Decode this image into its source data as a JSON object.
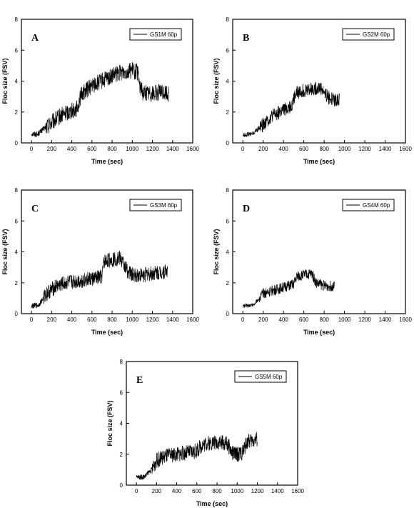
{
  "chart_data": [
    {
      "type": "line",
      "panel_label": "A",
      "legend": "GS1M 60p",
      "legend_position": "top-right",
      "xlabel": "Time (sec)",
      "ylabel": "Floc size (FSV)",
      "xlim": [
        -100,
        1600
      ],
      "ylim": [
        0,
        8
      ],
      "xticks": [
        0,
        200,
        400,
        600,
        800,
        1000,
        1200,
        1400,
        1600
      ],
      "yticks": [
        0,
        2,
        4,
        6,
        8
      ],
      "grid": false,
      "series": [
        {
          "noise": 0.55,
          "x": [
            0,
            60,
            100,
            200,
            300,
            400,
            450,
            470,
            500,
            600,
            700,
            800,
            900,
            1000,
            1050,
            1080,
            1100,
            1200,
            1300,
            1360
          ],
          "y": [
            0.6,
            0.55,
            0.8,
            1.3,
            1.8,
            2.1,
            2.2,
            2.6,
            3.2,
            3.7,
            4.0,
            4.3,
            4.6,
            4.7,
            4.6,
            3.6,
            3.3,
            3.2,
            3.3,
            3.2
          ]
        }
      ]
    },
    {
      "type": "line",
      "panel_label": "B",
      "legend": "GS2M 60p",
      "legend_position": "top-right",
      "xlabel": "Time (sec)",
      "ylabel": "Floc size (FSV)",
      "xlim": [
        -100,
        1600
      ],
      "ylim": [
        0,
        8
      ],
      "xticks": [
        0,
        200,
        400,
        600,
        800,
        1000,
        1200,
        1400,
        1600
      ],
      "yticks": [
        0,
        2,
        4,
        6,
        8
      ],
      "grid": false,
      "series": [
        {
          "noise": 0.45,
          "x": [
            0,
            100,
            200,
            300,
            400,
            480,
            520,
            600,
            700,
            760,
            800,
            850,
            900,
            950
          ],
          "y": [
            0.5,
            0.6,
            1.2,
            1.8,
            2.1,
            2.4,
            3.2,
            3.4,
            3.5,
            3.6,
            3.3,
            2.9,
            2.8,
            2.8
          ]
        }
      ]
    },
    {
      "type": "line",
      "panel_label": "C",
      "legend": "GS3M 60p",
      "legend_position": "top-right",
      "xlabel": "Time (sec)",
      "ylabel": "Floc size (FSV)",
      "xlim": [
        -100,
        1600
      ],
      "ylim": [
        0,
        8
      ],
      "xticks": [
        0,
        200,
        400,
        600,
        800,
        1000,
        1200,
        1400,
        1600
      ],
      "yticks": [
        0,
        2,
        4,
        6,
        8
      ],
      "grid": false,
      "series": [
        {
          "noise": 0.5,
          "x": [
            0,
            70,
            150,
            250,
            350,
            450,
            550,
            650,
            700,
            720,
            800,
            880,
            950,
            1000,
            1100,
            1200,
            1300,
            1350
          ],
          "y": [
            0.5,
            0.55,
            1.3,
            1.8,
            2.0,
            2.1,
            2.2,
            2.3,
            2.4,
            3.4,
            3.5,
            3.6,
            2.8,
            2.5,
            2.5,
            2.6,
            2.7,
            2.8
          ]
        }
      ]
    },
    {
      "type": "line",
      "panel_label": "D",
      "legend": "GS4M 60p",
      "legend_position": "top-right",
      "xlabel": "Time (sec)",
      "ylabel": "Floc size (FSV)",
      "xlim": [
        -100,
        1600
      ],
      "ylim": [
        0,
        8
      ],
      "xticks": [
        0,
        200,
        400,
        600,
        800,
        1000,
        1200,
        1400,
        1600
      ],
      "yticks": [
        0,
        2,
        4,
        6,
        8
      ],
      "grid": false,
      "series": [
        {
          "noise": 0.35,
          "x": [
            0,
            100,
            150,
            200,
            300,
            400,
            500,
            530,
            600,
            680,
            720,
            800,
            900
          ],
          "y": [
            0.5,
            0.55,
            0.9,
            1.3,
            1.5,
            1.7,
            1.9,
            2.4,
            2.5,
            2.6,
            2.0,
            1.8,
            1.8
          ]
        }
      ]
    },
    {
      "type": "line",
      "panel_label": "E",
      "legend": "GS5M 60p",
      "legend_position": "top-right",
      "xlabel": "Time (sec)",
      "ylabel": "Floc size (FSV)",
      "xlim": [
        -100,
        1600
      ],
      "ylim": [
        0,
        8
      ],
      "xticks": [
        0,
        200,
        400,
        600,
        800,
        1000,
        1200,
        1400,
        1600
      ],
      "yticks": [
        0,
        2,
        4,
        6,
        8
      ],
      "grid": false,
      "series": [
        {
          "noise": 0.5,
          "x": [
            0,
            80,
            150,
            200,
            300,
            400,
            500,
            600,
            650,
            700,
            800,
            900,
            950,
            1000,
            1050,
            1100,
            1200
          ],
          "y": [
            0.5,
            0.55,
            1.0,
            1.6,
            1.9,
            2.0,
            2.1,
            2.2,
            2.6,
            2.7,
            2.8,
            2.7,
            2.1,
            2.0,
            2.1,
            2.8,
            3.0
          ]
        }
      ]
    }
  ]
}
